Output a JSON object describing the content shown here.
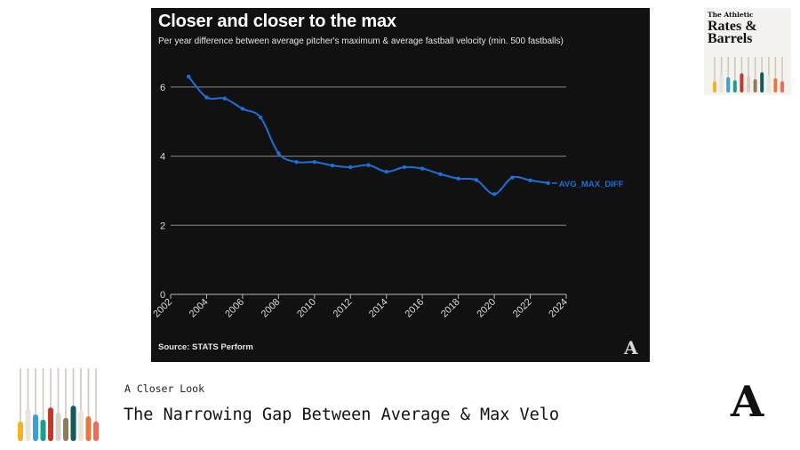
{
  "panel": {
    "title": "Closer and closer to the max",
    "subtitle": "Per year difference between average pitcher's maximum & average fastball velocity (min. 500 fastballs)",
    "source": "Source: STATS Perform",
    "logo": "A"
  },
  "chart_data": {
    "type": "line",
    "title": "Closer and closer to the max",
    "subtitle": "Per year difference between average pitcher's maximum & average fastball velocity (min. 500 fastballs)",
    "xlabel": "",
    "ylabel": "",
    "xlim": [
      2002,
      2024
    ],
    "ylim": [
      0,
      7
    ],
    "x_ticks": [
      "2002",
      "2004",
      "2006",
      "2008",
      "2010",
      "2012",
      "2014",
      "2016",
      "2018",
      "2020",
      "2022",
      "2024"
    ],
    "y_ticks": [
      "0",
      "2",
      "4",
      "6"
    ],
    "grid": "horizontal",
    "series": [
      {
        "name": "AVG_MAX_DIFF",
        "color": "#1f6fd6",
        "x": [
          2003,
          2004,
          2005,
          2006,
          2007,
          2008,
          2009,
          2010,
          2011,
          2012,
          2013,
          2014,
          2015,
          2016,
          2017,
          2018,
          2019,
          2020,
          2021,
          2022,
          2023
        ],
        "values": [
          6.3,
          5.7,
          5.67,
          5.37,
          5.12,
          4.08,
          3.83,
          3.83,
          3.73,
          3.68,
          3.74,
          3.55,
          3.68,
          3.64,
          3.48,
          3.35,
          3.31,
          2.9,
          3.38,
          3.3,
          3.22
        ]
      }
    ]
  },
  "brand": {
    "small": "The Athletic",
    "line1": "Rates &",
    "line2": "Barrels"
  },
  "footer": {
    "kicker": "A Closer Look",
    "headline": "The Narrowing Gap Between Average & Max Velo",
    "logo": "A"
  }
}
